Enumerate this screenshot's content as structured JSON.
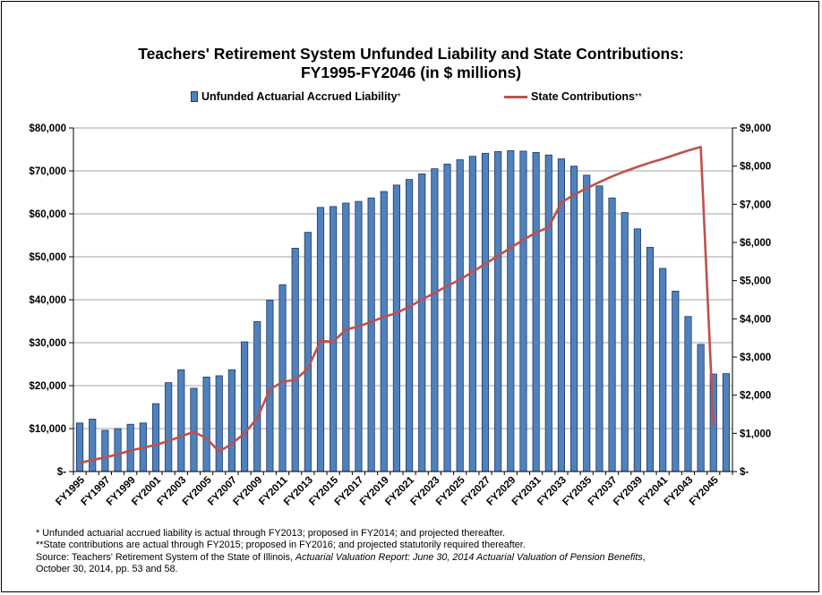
{
  "chart_data": {
    "type": "bar+line",
    "title_line1": "Teachers' Retirement System Unfunded Liability and State Contributions:",
    "title_line2": "FY1995-FY2046 (in $ millions)",
    "categories": [
      "FY1995",
      "FY1996",
      "FY1997",
      "FY1998",
      "FY1999",
      "FY2000",
      "FY2001",
      "FY2002",
      "FY2003",
      "FY2004",
      "FY2005",
      "FY2006",
      "FY2007",
      "FY2008",
      "FY2009",
      "FY2010",
      "FY2011",
      "FY2012",
      "FY2013",
      "FY2014",
      "FY2015",
      "FY2016",
      "FY2017",
      "FY2018",
      "FY2019",
      "FY2020",
      "FY2021",
      "FY2022",
      "FY2023",
      "FY2024",
      "FY2025",
      "FY2026",
      "FY2027",
      "FY2028",
      "FY2029",
      "FY2030",
      "FY2031",
      "FY2032",
      "FY2033",
      "FY2034",
      "FY2035",
      "FY2036",
      "FY2037",
      "FY2038",
      "FY2039",
      "FY2040",
      "FY2041",
      "FY2042",
      "FY2043",
      "FY2044",
      "FY2045",
      "FY2046"
    ],
    "x_tick_labels": [
      "FY1995",
      "FY1997",
      "FY1999",
      "FY2001",
      "FY2003",
      "FY2005",
      "FY2007",
      "FY2009",
      "FY2011",
      "FY2013",
      "FY2015",
      "FY2017",
      "FY2019",
      "FY2021",
      "FY2023",
      "FY2025",
      "FY2027",
      "FY2029",
      "FY2031",
      "FY2033",
      "FY2035",
      "FY2037",
      "FY2039",
      "FY2041",
      "FY2043",
      "FY2045"
    ],
    "series": [
      {
        "name": "Unfunded Actuarial Accrued Liability",
        "name_marker": "*",
        "type": "bar",
        "axis": "left",
        "color": "#4F81BD",
        "values": [
          11300,
          12200,
          9600,
          10000,
          11000,
          11300,
          15800,
          20700,
          23700,
          19400,
          22000,
          22300,
          23700,
          30200,
          34900,
          39900,
          43500,
          52000,
          55700,
          61500,
          61700,
          62500,
          62900,
          63700,
          65200,
          66700,
          68000,
          69300,
          70500,
          71600,
          72600,
          73400,
          74100,
          74500,
          74700,
          74600,
          74300,
          73700,
          72800,
          71100,
          69000,
          66500,
          63700,
          60300,
          56500,
          52200,
          47300,
          42000,
          36100,
          29600,
          22700,
          22800
        ]
      },
      {
        "name": "State Contributions",
        "name_marker": "**",
        "type": "line",
        "axis": "right",
        "color": "#C0504D",
        "values": [
          230,
          300,
          370,
          450,
          550,
          620,
          700,
          800,
          920,
          1040,
          870,
          520,
          730,
          1000,
          1400,
          2150,
          2350,
          2400,
          2700,
          3420,
          3400,
          3720,
          3800,
          3920,
          4050,
          4150,
          4320,
          4500,
          4680,
          4860,
          5030,
          5230,
          5440,
          5650,
          5860,
          6070,
          6260,
          6400,
          7050,
          7250,
          7420,
          7580,
          7730,
          7860,
          7980,
          8090,
          8190,
          8300,
          8410,
          8500,
          1200,
          null
        ]
      }
    ],
    "left_axis": {
      "min": 0,
      "max": 80000,
      "step": 10000,
      "tick_labels": [
        "$-",
        "$10,000",
        "$20,000",
        "$30,000",
        "$40,000",
        "$50,000",
        "$60,000",
        "$70,000",
        "$80,000"
      ]
    },
    "right_axis": {
      "min": 0,
      "max": 9000,
      "step": 1000,
      "tick_labels": [
        "$-",
        "$1,000",
        "$2,000",
        "$3,000",
        "$4,000",
        "$5,000",
        "$6,000",
        "$7,000",
        "$8,000",
        "$9,000"
      ]
    },
    "grid": true,
    "legend_position": "top"
  },
  "notes": {
    "line1": "* Unfunded actuarial accrued liability is actual through FY2013; proposed in FY2014; and  projected thereafter.",
    "line2": "**State contributions are actual through FY2015; proposed in FY2016; and projected statutorily required thereafter.",
    "line3_prefix": "Source: Teachers' Retirement System of the State of Illinois, ",
    "line3_italic": "Actuarial Valuation Report: June 30, 2014 Actuarial Valuation of Pension Benefits",
    "line3_suffix": ",",
    "line4": "October 30, 2014, pp. 53 and 58."
  }
}
